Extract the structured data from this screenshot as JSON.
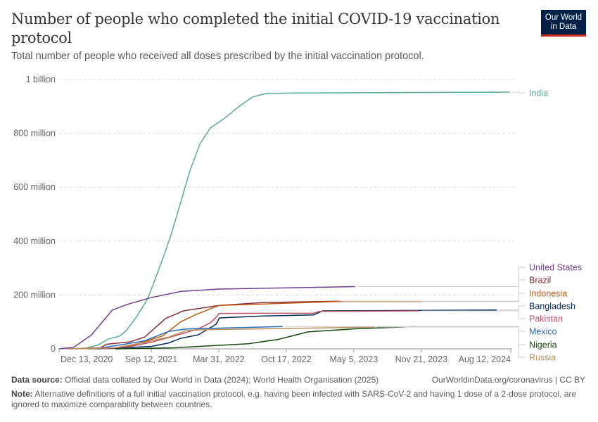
{
  "header": {
    "title": "Number of people who completed the initial COVID-19 vaccination protocol",
    "subtitle": "Total number of people who received all doses prescribed by the initial vaccination protocol.",
    "logo_text": "Our World in Data"
  },
  "footer": {
    "source_label": "Data source:",
    "source_text": "Official data collated by Our World in Data (2024); World Health Organisation (2025)",
    "link_text": "OurWorldinData.org/coronavirus | CC BY",
    "note_label": "Note:",
    "note_text": "Alternative definitions of a full initial vaccination protocol, e.g. having been infected with SARS-CoV-2 and having 1 dose of a 2-dose protocol, are ignored to maximize comparability between countries."
  },
  "chart_data": {
    "type": "line",
    "title": "Number of people who completed the initial COVID-19 vaccination protocol",
    "xlabel": "",
    "ylabel": "",
    "x_type": "date",
    "xlim": [
      "2020-12-13",
      "2024-08-12"
    ],
    "ylim": [
      0,
      1000000000
    ],
    "grid": "horizontal dashed",
    "legend": "right, labels at line ends",
    "x_ticks": [
      {
        "date": "2020-12-13",
        "label": "Dec 13, 2020"
      },
      {
        "date": "2021-09-12",
        "label": "Sep 12, 2021"
      },
      {
        "date": "2022-03-31",
        "label": "Mar 31, 2022"
      },
      {
        "date": "2022-10-17",
        "label": "Oct 17, 2022"
      },
      {
        "date": "2023-05-05",
        "label": "May 5, 2023"
      },
      {
        "date": "2023-11-21",
        "label": "Nov 21, 2023"
      },
      {
        "date": "2024-08-12",
        "label": "Aug 12, 2024"
      }
    ],
    "y_ticks": [
      {
        "value": 0,
        "label": "0"
      },
      {
        "value": 200000000,
        "label": "200 million"
      },
      {
        "value": 400000000,
        "label": "400 million"
      },
      {
        "value": 600000000,
        "label": "600 million"
      },
      {
        "value": 800000000,
        "label": "800 million"
      },
      {
        "value": 1000000000,
        "label": "1 billion"
      }
    ],
    "series": [
      {
        "name": "India",
        "color": "#58AC8C",
        "points": [
          [
            "2021-01-16",
            0
          ],
          [
            "2021-02-26",
            1000000
          ],
          [
            "2021-04-08",
            15000000
          ],
          [
            "2021-05-09",
            37000000
          ],
          [
            "2021-06-10",
            47000000
          ],
          [
            "2021-06-30",
            68000000
          ],
          [
            "2021-07-31",
            120000000
          ],
          [
            "2021-09-01",
            185000000
          ],
          [
            "2021-09-21",
            250000000
          ],
          [
            "2021-10-22",
            355000000
          ],
          [
            "2021-11-12",
            433000000
          ],
          [
            "2021-12-13",
            564000000
          ],
          [
            "2022-01-03",
            655000000
          ],
          [
            "2022-02-03",
            760000000
          ],
          [
            "2022-03-06",
            820000000
          ],
          [
            "2022-04-17",
            856000000
          ],
          [
            "2022-05-28",
            898000000
          ],
          [
            "2022-07-09",
            935000000
          ],
          [
            "2022-08-19",
            948000000
          ],
          [
            "2022-11-11",
            950000000
          ],
          [
            "2024-08-09",
            953000000
          ]
        ]
      },
      {
        "name": "United States",
        "color": "#6D3E91",
        "points": [
          [
            "2020-12-13",
            0
          ],
          [
            "2021-01-26",
            6000000
          ],
          [
            "2021-03-19",
            52000000
          ],
          [
            "2021-05-20",
            144000000
          ],
          [
            "2021-07-03",
            165000000
          ],
          [
            "2021-09-11",
            190000000
          ],
          [
            "2021-12-08",
            213000000
          ],
          [
            "2022-04-01",
            222000000
          ],
          [
            "2023-05-09",
            231000000
          ]
        ]
      },
      {
        "name": "Brazil",
        "color": "#883039",
        "points": [
          [
            "2021-01-08",
            0
          ],
          [
            "2021-04-15",
            4000000
          ],
          [
            "2021-05-02",
            17000000
          ],
          [
            "2021-07-12",
            26000000
          ],
          [
            "2021-08-24",
            44000000
          ],
          [
            "2021-10-25",
            113000000
          ],
          [
            "2021-12-16",
            141000000
          ],
          [
            "2022-04-01",
            161000000
          ],
          [
            "2022-08-10",
            172000000
          ],
          [
            "2023-03-22",
            177000000
          ]
        ]
      },
      {
        "name": "Indonesia",
        "color": "#C05917",
        "points": [
          [
            "2021-03-11",
            0
          ],
          [
            "2021-05-29",
            2000000
          ],
          [
            "2021-07-29",
            17000000
          ],
          [
            "2021-10-16",
            48000000
          ],
          [
            "2021-12-08",
            100000000
          ],
          [
            "2022-01-29",
            131000000
          ],
          [
            "2022-04-01",
            161000000
          ],
          [
            "2023-03-22",
            176000000
          ],
          [
            "2023-11-24",
            176000000
          ]
        ]
      },
      {
        "name": "Bangladesh",
        "color": "#00295B",
        "points": [
          [
            "2021-04-06",
            0
          ],
          [
            "2021-09-11",
            9000000
          ],
          [
            "2021-11-03",
            22000000
          ],
          [
            "2021-12-08",
            39000000
          ],
          [
            "2022-01-29",
            52000000
          ],
          [
            "2022-03-23",
            91000000
          ],
          [
            "2022-04-02",
            115000000
          ],
          [
            "2022-08-10",
            122000000
          ],
          [
            "2023-01-06",
            126000000
          ],
          [
            "2023-02-02",
            141000000
          ],
          [
            "2024-07-02",
            144000000
          ]
        ]
      },
      {
        "name": "Pakistan",
        "color": "#C15065",
        "points": [
          [
            "2021-04-15",
            0
          ],
          [
            "2021-07-12",
            9000000
          ],
          [
            "2021-09-11",
            24000000
          ],
          [
            "2021-11-20",
            48000000
          ],
          [
            "2022-01-29",
            74000000
          ],
          [
            "2022-03-05",
            96000000
          ],
          [
            "2022-03-23",
            117000000
          ],
          [
            "2022-04-01",
            131000000
          ],
          [
            "2022-08-10",
            132000000
          ],
          [
            "2023-01-06",
            132000000
          ],
          [
            "2023-01-24",
            139000000
          ],
          [
            "2023-11-14",
            141000000
          ]
        ]
      },
      {
        "name": "Mexico",
        "color": "#286BBB",
        "points": [
          [
            "2021-03-28",
            0
          ],
          [
            "2021-06-24",
            17000000
          ],
          [
            "2021-08-24",
            30000000
          ],
          [
            "2021-11-03",
            65000000
          ],
          [
            "2021-12-25",
            74000000
          ],
          [
            "2022-10-06",
            83000000
          ]
        ]
      },
      {
        "name": "Nigeria",
        "color": "#18470F",
        "points": [
          [
            "2021-05-29",
            0
          ],
          [
            "2021-11-20",
            4000000
          ],
          [
            "2022-04-01",
            13000000
          ],
          [
            "2022-06-27",
            19000000
          ],
          [
            "2022-09-23",
            35000000
          ],
          [
            "2022-12-20",
            63000000
          ],
          [
            "2023-04-30",
            74000000
          ],
          [
            "2023-11-07",
            83000000
          ]
        ]
      },
      {
        "name": "Russia",
        "color": "#BC8E5A",
        "points": [
          [
            "2021-01-08",
            0
          ],
          [
            "2021-05-29",
            4000000
          ],
          [
            "2021-08-24",
            24000000
          ],
          [
            "2021-11-03",
            44000000
          ],
          [
            "2021-12-25",
            68000000
          ],
          [
            "2022-02-16",
            71000000
          ],
          [
            "2023-07-05",
            81000000
          ]
        ]
      }
    ]
  }
}
